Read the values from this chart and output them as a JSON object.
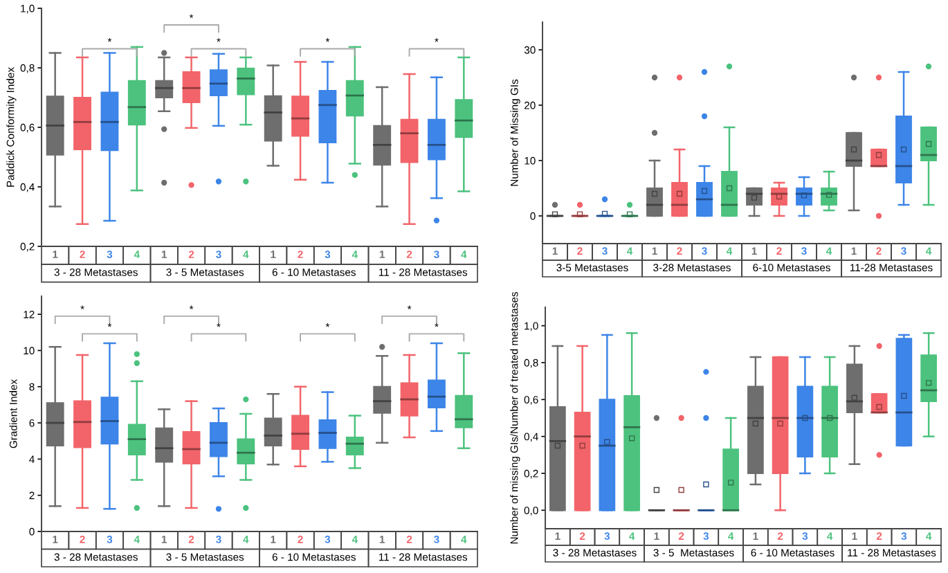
{
  "chart_data": [
    {
      "type": "box",
      "ylabel": "Paddick Conformity Index",
      "categories": [
        "3 - 28 Metastases",
        "3 - 5 Metastases",
        "6 - 10 Metastases",
        "11 - 28 Metastases"
      ],
      "ylim": [
        0.2,
        1.0
      ],
      "yticks": [
        {
          "value": 0.2,
          "label": "0,2"
        },
        {
          "value": 0.4,
          "label": "0,4"
        },
        {
          "value": 0.6,
          "label": "0,6"
        },
        {
          "value": 0.8,
          "label": "0,8"
        },
        {
          "value": 1.0,
          "label": "1,0"
        }
      ],
      "series": [
        {
          "name": "1",
          "color": "#6e6e6e",
          "boxes": [
            {
              "low": 0.334,
              "q1": 0.508,
              "median": 0.606,
              "q3": 0.704,
              "high": 0.85
            },
            {
              "low": 0.654,
              "q1": 0.7,
              "median": 0.732,
              "q3": 0.756,
              "high": 0.835,
              "outliers": [
                0.85,
                0.594,
                0.414
              ]
            },
            {
              "low": 0.471,
              "q1": 0.555,
              "median": 0.65,
              "q3": 0.705,
              "high": 0.808
            },
            {
              "low": 0.334,
              "q1": 0.474,
              "median": 0.541,
              "q3": 0.605,
              "high": 0.735
            }
          ]
        },
        {
          "name": "2",
          "color": "#f26469",
          "boxes": [
            {
              "low": 0.275,
              "q1": 0.526,
              "median": 0.618,
              "q3": 0.7,
              "high": 0.835
            },
            {
              "low": 0.598,
              "q1": 0.684,
              "median": 0.732,
              "q3": 0.786,
              "high": 0.835,
              "outliers": [
                0.406
              ]
            },
            {
              "low": 0.424,
              "q1": 0.571,
              "median": 0.63,
              "q3": 0.704,
              "high": 0.82
            },
            {
              "low": 0.275,
              "q1": 0.483,
              "median": 0.58,
              "q3": 0.626,
              "high": 0.779
            }
          ]
        },
        {
          "name": "3",
          "color": "#3d85e8",
          "boxes": [
            {
              "low": 0.286,
              "q1": 0.523,
              "median": 0.618,
              "q3": 0.717,
              "high": 0.85
            },
            {
              "low": 0.605,
              "q1": 0.707,
              "median": 0.747,
              "q3": 0.792,
              "high": 0.847,
              "outliers": [
                0.418
              ]
            },
            {
              "low": 0.414,
              "q1": 0.549,
              "median": 0.675,
              "q3": 0.723,
              "high": 0.82
            },
            {
              "low": 0.362,
              "q1": 0.492,
              "median": 0.541,
              "q3": 0.626,
              "high": 0.768,
              "outliers": [
                0.287
              ]
            }
          ]
        },
        {
          "name": "4",
          "color": "#4cc27e",
          "boxes": [
            {
              "low": 0.388,
              "q1": 0.609,
              "median": 0.668,
              "q3": 0.756,
              "high": 0.87
            },
            {
              "low": 0.609,
              "q1": 0.711,
              "median": 0.764,
              "q3": 0.798,
              "high": 0.835,
              "outliers": [
                0.418
              ]
            },
            {
              "low": 0.478,
              "q1": 0.639,
              "median": 0.707,
              "q3": 0.756,
              "high": 0.87,
              "outliers": [
                0.44
              ]
            },
            {
              "low": 0.385,
              "q1": 0.567,
              "median": 0.623,
              "q3": 0.692,
              "high": 0.835
            }
          ]
        }
      ],
      "annotations": [
        "*",
        "*",
        "*",
        "*",
        "*"
      ]
    },
    {
      "type": "box",
      "ylabel": "Number of Missing GIs",
      "categories": [
        "3-5 Metastases",
        "3-28 Metastases",
        "6-10 Metastases",
        "11-28 Metastases"
      ],
      "ylim": [
        -5,
        35
      ],
      "yticks": [
        0,
        10,
        20,
        30
      ],
      "series": [
        {
          "name": "1",
          "color": "#6e6e6e",
          "boxes": [
            {
              "low": 0,
              "q1": 0,
              "median": 0,
              "q3": 0,
              "high": 0,
              "mean": 0.3,
              "outliers": [
                2
              ]
            },
            {
              "low": 0,
              "q1": 0,
              "median": 2,
              "q3": 5,
              "high": 10,
              "mean": 4,
              "outliers": [
                15,
                25
              ]
            },
            {
              "low": 0,
              "q1": 2,
              "median": 4,
              "q3": 5,
              "high": 5,
              "mean": 3.3
            },
            {
              "low": 1,
              "q1": 9,
              "median": 10,
              "q3": 15,
              "high": 15,
              "mean": 12,
              "outliers": [
                25
              ]
            }
          ]
        },
        {
          "name": "2",
          "color": "#f26469",
          "boxes": [
            {
              "low": 0,
              "q1": 0,
              "median": 0,
              "q3": 0,
              "high": 0,
              "mean": 0.3,
              "outliers": [
                2
              ]
            },
            {
              "low": 0,
              "q1": 0,
              "median": 2,
              "q3": 6,
              "high": 12,
              "mean": 4,
              "outliers": [
                25
              ]
            },
            {
              "low": 0,
              "q1": 2,
              "median": 4,
              "q3": 5,
              "high": 6,
              "mean": 3.5
            },
            {
              "low": 9,
              "q1": 9,
              "median": 9,
              "q3": 12,
              "high": 12,
              "mean": 11,
              "outliers": [
                0,
                25
              ]
            }
          ]
        },
        {
          "name": "3",
          "color": "#3d85e8",
          "boxes": [
            {
              "low": 0,
              "q1": 0,
              "median": 0,
              "q3": 0,
              "high": 0,
              "mean": 0.4,
              "outliers": [
                3
              ]
            },
            {
              "low": 0,
              "q1": 0,
              "median": 3,
              "q3": 6,
              "high": 9,
              "mean": 4.5,
              "outliers": [
                18,
                26
              ]
            },
            {
              "low": 0,
              "q1": 2,
              "median": 4,
              "q3": 5,
              "high": 7,
              "mean": 3.7
            },
            {
              "low": 2,
              "q1": 6,
              "median": 9,
              "q3": 18,
              "high": 26,
              "mean": 12
            }
          ]
        },
        {
          "name": "4",
          "color": "#4cc27e",
          "boxes": [
            {
              "low": 0,
              "q1": 0,
              "median": 0,
              "q3": 0,
              "high": 0,
              "mean": 0.3,
              "outliers": [
                2
              ]
            },
            {
              "low": 0,
              "q1": 0,
              "median": 2,
              "q3": 8,
              "high": 16,
              "mean": 5,
              "outliers": [
                27
              ]
            },
            {
              "low": 1,
              "q1": 2,
              "median": 4,
              "q3": 5,
              "high": 8,
              "mean": 3.8
            },
            {
              "low": 2,
              "q1": 10,
              "median": 11,
              "q3": 16,
              "high": 16,
              "mean": 13,
              "outliers": [
                27
              ]
            }
          ]
        }
      ]
    },
    {
      "type": "box",
      "ylabel": "Gradient Index",
      "categories": [
        "3 - 28 Metastases",
        "3 - 5 Metastases",
        "6 - 10 Metastases",
        "11 - 28 Metastases"
      ],
      "ylim": [
        0,
        13
      ],
      "yticks": [
        0,
        2,
        4,
        6,
        8,
        10,
        12
      ],
      "series": [
        {
          "name": "1",
          "color": "#6e6e6e",
          "boxes": [
            {
              "low": 1.4,
              "q1": 4.75,
              "median": 6.0,
              "q3": 7.1,
              "high": 10.2
            },
            {
              "low": 1.4,
              "q1": 3.85,
              "median": 4.6,
              "q3": 5.7,
              "high": 6.75
            },
            {
              "low": 3.7,
              "q1": 4.75,
              "median": 5.3,
              "q3": 6.25,
              "high": 7.6
            },
            {
              "low": 4.9,
              "q1": 6.55,
              "median": 7.2,
              "q3": 8.0,
              "high": 9.7,
              "outliers": [
                10.2
              ]
            }
          ]
        },
        {
          "name": "2",
          "color": "#f26469",
          "boxes": [
            {
              "low": 1.3,
              "q1": 4.65,
              "median": 6.05,
              "q3": 7.2,
              "high": 9.75
            },
            {
              "low": 1.3,
              "q1": 3.75,
              "median": 4.55,
              "q3": 5.5,
              "high": 7.2
            },
            {
              "low": 3.6,
              "q1": 4.55,
              "median": 5.4,
              "q3": 6.4,
              "high": 8.0
            },
            {
              "low": 5.2,
              "q1": 6.4,
              "median": 7.3,
              "q3": 8.2,
              "high": 9.75
            }
          ]
        },
        {
          "name": "3",
          "color": "#3d85e8",
          "boxes": [
            {
              "low": 1.25,
              "q1": 4.85,
              "median": 6.1,
              "q3": 7.4,
              "high": 10.4
            },
            {
              "low": 3.05,
              "q1": 4.15,
              "median": 4.9,
              "q3": 6.0,
              "high": 6.8,
              "outliers": [
                1.25
              ]
            },
            {
              "low": 3.85,
              "q1": 4.6,
              "median": 5.45,
              "q3": 6.15,
              "high": 7.7
            },
            {
              "low": 5.55,
              "q1": 6.85,
              "median": 7.45,
              "q3": 8.35,
              "high": 10.4
            }
          ]
        },
        {
          "name": "4",
          "color": "#4cc27e",
          "boxes": [
            {
              "low": 2.85,
              "q1": 4.25,
              "median": 5.1,
              "q3": 5.9,
              "high": 8.3,
              "outliers": [
                9.8,
                9.3,
                1.3
              ]
            },
            {
              "low": 2.85,
              "q1": 3.75,
              "median": 4.35,
              "q3": 5.1,
              "high": 6.5,
              "outliers": [
                7.3,
                1.3
              ]
            },
            {
              "low": 3.5,
              "q1": 4.25,
              "median": 4.85,
              "q3": 5.2,
              "high": 6.4
            },
            {
              "low": 4.6,
              "q1": 5.75,
              "median": 6.2,
              "q3": 7.5,
              "high": 9.85
            }
          ]
        }
      ],
      "annotations": [
        "*",
        "*",
        "*",
        "*",
        "*",
        "*",
        "*"
      ]
    },
    {
      "type": "box",
      "ylabel": "Number of missing GIs/Number of treated metastases",
      "categories": [
        "3 - 28 Metastases",
        "3 - 5  Metastases",
        "6 - 10 Metastases",
        "11 - 28 Metastases"
      ],
      "ylim": [
        -0.1,
        1.1
      ],
      "yticks": [
        {
          "value": 0.0,
          "label": "0,0"
        },
        {
          "value": 0.2,
          "label": "0,2"
        },
        {
          "value": 0.4,
          "label": "0,4"
        },
        {
          "value": 0.6,
          "label": "0,6"
        },
        {
          "value": 0.8,
          "label": "0,8"
        },
        {
          "value": 1.0,
          "label": "1,0"
        }
      ],
      "series": [
        {
          "name": "1",
          "color": "#6e6e6e",
          "boxes": [
            {
              "low": 0,
              "q1": 0,
              "median": 0.375,
              "q3": 0.56,
              "high": 0.89,
              "mean": 0.35
            },
            {
              "low": 0,
              "q1": 0,
              "median": 0,
              "q3": 0,
              "high": 0,
              "mean": 0.11,
              "outliers": [
                0.5
              ]
            },
            {
              "low": 0.14,
              "q1": 0.2,
              "median": 0.5,
              "q3": 0.67,
              "high": 0.83,
              "mean": 0.47
            },
            {
              "low": 0.25,
              "q1": 0.53,
              "median": 0.59,
              "q3": 0.79,
              "high": 0.89,
              "mean": 0.61
            }
          ]
        },
        {
          "name": "2",
          "color": "#f26469",
          "boxes": [
            {
              "low": 0,
              "q1": 0,
              "median": 0.4,
              "q3": 0.53,
              "high": 0.89,
              "mean": 0.35
            },
            {
              "low": 0,
              "q1": 0,
              "median": 0,
              "q3": 0,
              "high": 0,
              "mean": 0.11,
              "outliers": [
                0.5
              ]
            },
            {
              "low": 0,
              "q1": 0.2,
              "median": 0.5,
              "q3": 0.83,
              "high": 0.83,
              "mean": 0.47
            },
            {
              "low": 0.53,
              "q1": 0.53,
              "median": 0.53,
              "q3": 0.63,
              "high": 0.63,
              "mean": 0.56,
              "outliers": [
                0.89,
                0.3
              ]
            }
          ]
        },
        {
          "name": "3",
          "color": "#3d85e8",
          "boxes": [
            {
              "low": 0,
              "q1": 0,
              "median": 0.35,
              "q3": 0.6,
              "high": 0.95,
              "mean": 0.37
            },
            {
              "low": 0,
              "q1": 0,
              "median": 0,
              "q3": 0,
              "high": 0,
              "mean": 0.14,
              "outliers": [
                0.75,
                0.5
              ]
            },
            {
              "low": 0.2,
              "q1": 0.29,
              "median": 0.5,
              "q3": 0.67,
              "high": 0.83,
              "mean": 0.5
            },
            {
              "low": 0.35,
              "q1": 0.35,
              "median": 0.53,
              "q3": 0.93,
              "high": 0.95,
              "mean": 0.62
            }
          ]
        },
        {
          "name": "4",
          "color": "#4cc27e",
          "boxes": [
            {
              "low": 0,
              "q1": 0,
              "median": 0.45,
              "q3": 0.62,
              "high": 0.96,
              "mean": 0.39
            },
            {
              "low": 0,
              "q1": 0,
              "median": 0,
              "q3": 0.33,
              "high": 0.5,
              "mean": 0.15
            },
            {
              "low": 0.2,
              "q1": 0.29,
              "median": 0.5,
              "q3": 0.67,
              "high": 0.83,
              "mean": 0.5
            },
            {
              "low": 0.4,
              "q1": 0.59,
              "median": 0.65,
              "q3": 0.84,
              "high": 0.96,
              "mean": 0.69
            }
          ]
        }
      ]
    }
  ]
}
